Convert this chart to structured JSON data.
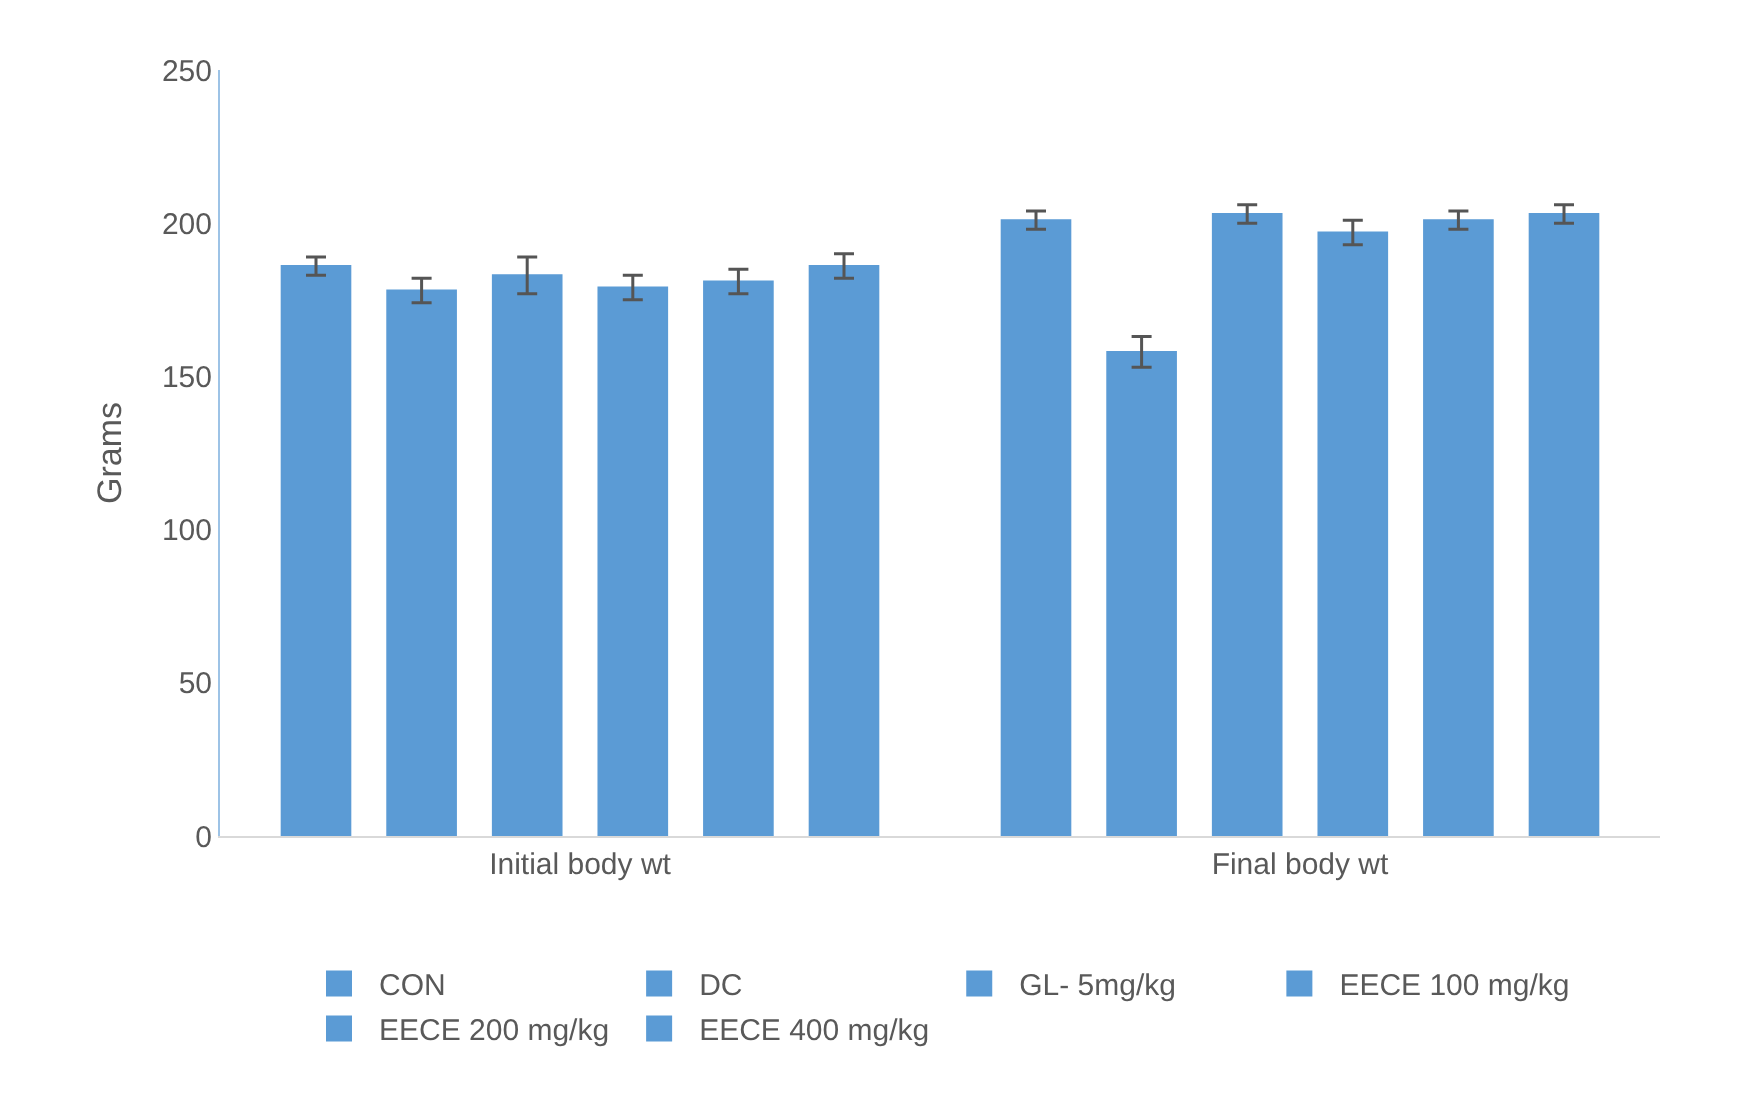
{
  "chart_data": {
    "type": "bar",
    "ylabel": "Grams",
    "categories": [
      "Initial body wt",
      "Final body wt"
    ],
    "series": [
      {
        "name": "CON",
        "color": "#5b9bd5",
        "values": [
          186,
          201
        ],
        "errors": [
          3,
          3
        ]
      },
      {
        "name": "DC",
        "color": "#5b9bd5",
        "values": [
          178,
          158
        ],
        "errors": [
          4,
          5
        ]
      },
      {
        "name": "GL- 5mg/kg",
        "color": "#5b9bd5",
        "values": [
          183,
          203
        ],
        "errors": [
          6,
          3
        ]
      },
      {
        "name": "EECE 100 mg/kg",
        "color": "#5b9bd5",
        "values": [
          179,
          197
        ],
        "errors": [
          4,
          4
        ]
      },
      {
        "name": "EECE 200 mg/kg",
        "color": "#5b9bd5",
        "values": [
          181,
          201
        ],
        "errors": [
          4,
          3
        ]
      },
      {
        "name": "EECE 400 mg/kg",
        "color": "#5b9bd5",
        "values": [
          186,
          203
        ],
        "errors": [
          4,
          3
        ]
      }
    ],
    "ylim": [
      0,
      250
    ],
    "yticks": [
      0,
      50,
      100,
      150,
      200,
      250
    ],
    "legend": "bottom"
  }
}
